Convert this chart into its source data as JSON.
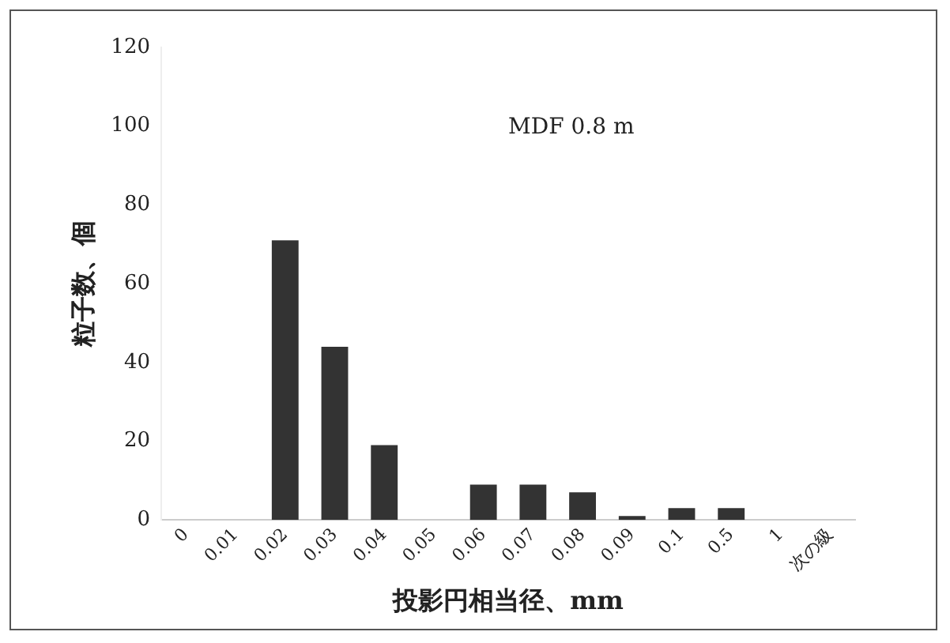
{
  "chart_data": {
    "type": "bar",
    "xlabel": "投影円相当径、mm",
    "ylabel": "粒子数、個",
    "categories": [
      "0",
      "0.01",
      "0.02",
      "0.03",
      "0.04",
      "0.05",
      "0.06",
      "0.07",
      "0.08",
      "0.09",
      "0.1",
      "0.5",
      "1",
      "次の級"
    ],
    "values": [
      0,
      0,
      71,
      44,
      19,
      0,
      9,
      9,
      7,
      1,
      3,
      3,
      0,
      0
    ],
    "color": "#333333",
    "ylim": [
      0,
      120
    ],
    "yticks": [
      0,
      20,
      40,
      60,
      80,
      100,
      120
    ],
    "grid": false,
    "annotations": [
      "MDF 0.8 m"
    ]
  }
}
